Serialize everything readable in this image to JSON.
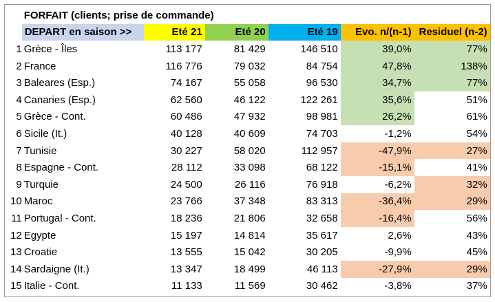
{
  "title": "FORFAIT (clients; prise de commande)",
  "headers": {
    "depart": "DEPART en saison >>",
    "ete21": "Eté 21",
    "ete20": "Eté 20",
    "ete19": "Eté 19",
    "evo": "Evo. n/(n-1)",
    "residuel": "Residuel (n-2)"
  },
  "colors": {
    "header_depart": "#c9d5ec",
    "header_ete21": "#ffff00",
    "header_ete20": "#92d050",
    "header_ete19": "#00b0f0",
    "header_evo_residuel": "#ffc000",
    "highlight_green": "#c6e0b4",
    "highlight_salmon": "#f8cbad"
  },
  "rows": [
    {
      "num": "1",
      "name": "Grèce - Îles",
      "e21": "113 177",
      "e20": "81 429",
      "e19": "146 510",
      "evo": "39,0%",
      "res": "77%",
      "evo_hl": "green",
      "res_hl": "green"
    },
    {
      "num": "2",
      "name": "France",
      "e21": "116 776",
      "e20": "79 032",
      "e19": "84 754",
      "evo": "47,8%",
      "res": "138%",
      "evo_hl": "green",
      "res_hl": "green"
    },
    {
      "num": "3",
      "name": "Baleares (Esp.)",
      "e21": "74 167",
      "e20": "55 058",
      "e19": "96 530",
      "evo": "34,7%",
      "res": "77%",
      "evo_hl": "green",
      "res_hl": "green"
    },
    {
      "num": "4",
      "name": "Canaries (Esp.)",
      "e21": "62 560",
      "e20": "46 122",
      "e19": "122 261",
      "evo": "35,6%",
      "res": "51%",
      "evo_hl": "green",
      "res_hl": ""
    },
    {
      "num": "5",
      "name": "Grèce - Cont.",
      "e21": "60 486",
      "e20": "47 932",
      "e19": "98 981",
      "evo": "26,2%",
      "res": "61%",
      "evo_hl": "green",
      "res_hl": ""
    },
    {
      "num": "6",
      "name": "Sicile (It.)",
      "e21": "40 128",
      "e20": "40 609",
      "e19": "74 703",
      "evo": "-1,2%",
      "res": "54%",
      "evo_hl": "",
      "res_hl": ""
    },
    {
      "num": "7",
      "name": "Tunisie",
      "e21": "30 227",
      "e20": "58 020",
      "e19": "112 957",
      "evo": "-47,9%",
      "res": "27%",
      "evo_hl": "salmon",
      "res_hl": "salmon"
    },
    {
      "num": "8",
      "name": "Espagne - Cont.",
      "e21": "28 112",
      "e20": "33 098",
      "e19": "68 122",
      "evo": "-15,1%",
      "res": "41%",
      "evo_hl": "salmon",
      "res_hl": ""
    },
    {
      "num": "9",
      "name": "Turquie",
      "e21": "24 500",
      "e20": "26 116",
      "e19": "76 918",
      "evo": "-6,2%",
      "res": "32%",
      "evo_hl": "",
      "res_hl": "salmon"
    },
    {
      "num": "10",
      "name": "Maroc",
      "e21": "23 766",
      "e20": "37 348",
      "e19": "83 313",
      "evo": "-36,4%",
      "res": "29%",
      "evo_hl": "salmon",
      "res_hl": "salmon"
    },
    {
      "num": "11",
      "name": "Portugal - Cont.",
      "e21": "18 236",
      "e20": "21 806",
      "e19": "32 658",
      "evo": "-16,4%",
      "res": "56%",
      "evo_hl": "salmon",
      "res_hl": ""
    },
    {
      "num": "12",
      "name": "Egypte",
      "e21": "15 197",
      "e20": "14 814",
      "e19": "35 617",
      "evo": "2,6%",
      "res": "43%",
      "evo_hl": "",
      "res_hl": ""
    },
    {
      "num": "13",
      "name": "Croatie",
      "e21": "13 555",
      "e20": "15 042",
      "e19": "30 205",
      "evo": "-9,9%",
      "res": "45%",
      "evo_hl": "",
      "res_hl": ""
    },
    {
      "num": "14",
      "name": "Sardaigne (It.)",
      "e21": "13 347",
      "e20": "18 499",
      "e19": "46 113",
      "evo": "-27,9%",
      "res": "29%",
      "evo_hl": "salmon",
      "res_hl": "salmon"
    },
    {
      "num": "15",
      "name": "Italie - Cont.",
      "e21": "11 133",
      "e20": "11 569",
      "e19": "30 462",
      "evo": "-3,8%",
      "res": "37%",
      "evo_hl": "",
      "res_hl": ""
    }
  ]
}
